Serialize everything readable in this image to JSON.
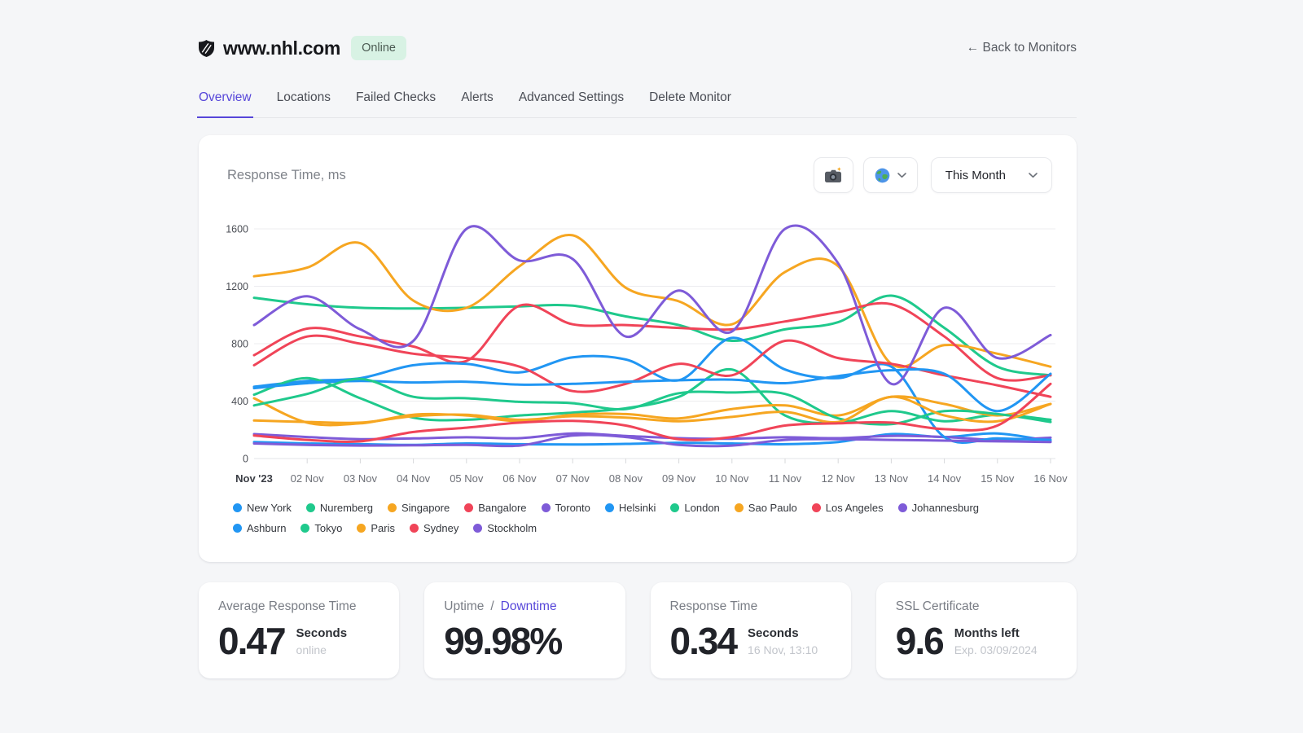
{
  "colors": {
    "accent": "#5646d9",
    "online_badge_bg": "#d8f2e4",
    "online_badge_text": "#4b5a52",
    "grid": "#ececef",
    "axis": "#e3e4e7"
  },
  "header": {
    "favicon": "nhl-shield-icon",
    "site": "www.nhl.com",
    "status": "Online",
    "back": "← Back to Monitors"
  },
  "tabs": [
    {
      "label": "Overview",
      "active": true
    },
    {
      "label": "Locations",
      "active": false
    },
    {
      "label": "Failed Checks",
      "active": false
    },
    {
      "label": "Alerts",
      "active": false
    },
    {
      "label": "Advanced Settings",
      "active": false
    },
    {
      "label": "Delete Monitor",
      "active": false
    }
  ],
  "chart_card": {
    "title": "Response Time, ms",
    "screenshot_icon": "camera-icon",
    "region_icon": "globe-icon",
    "period_label": "This Month"
  },
  "chart_data": {
    "type": "line",
    "title": "Response Time, ms",
    "unit": "ms",
    "grid": "horizontal",
    "legend_position": "bottom",
    "ylim": [
      0,
      1700
    ],
    "yticks": [
      0,
      400,
      800,
      1200,
      1600
    ],
    "x": [
      "Nov '23",
      "02 Nov",
      "03 Nov",
      "04 Nov",
      "05 Nov",
      "06 Nov",
      "07 Nov",
      "08 Nov",
      "09 Nov",
      "10 Nov",
      "11 Nov",
      "12 Nov",
      "13 Nov",
      "14 Nov",
      "15 Nov",
      "16 Nov"
    ],
    "series": [
      {
        "name": "New York",
        "color": "#2196f3",
        "values": [
          115,
          105,
          100,
          95,
          105,
          100,
          98,
          102,
          110,
          105,
          100,
          115,
          170,
          150,
          175,
          120
        ]
      },
      {
        "name": "Nuremberg",
        "color": "#1fc98c",
        "values": [
          1120,
          1075,
          1050,
          1045,
          1050,
          1060,
          1065,
          990,
          930,
          820,
          900,
          950,
          1135,
          910,
          640,
          580
        ]
      },
      {
        "name": "Singapore",
        "color": "#f6a621",
        "values": [
          1270,
          1330,
          1500,
          1100,
          1050,
          1340,
          1555,
          1190,
          1095,
          935,
          1300,
          1340,
          660,
          790,
          730,
          640
        ]
      },
      {
        "name": "Bangalore",
        "color": "#f04458",
        "values": [
          720,
          905,
          850,
          780,
          680,
          1065,
          935,
          930,
          910,
          900,
          955,
          1020,
          1075,
          850,
          560,
          580
        ]
      },
      {
        "name": "Toronto",
        "color": "#7e5bd8",
        "values": [
          170,
          150,
          135,
          140,
          148,
          142,
          175,
          158,
          142,
          138,
          148,
          142,
          158,
          150,
          130,
          145
        ]
      },
      {
        "name": "Helsinki",
        "color": "#2196f3",
        "values": [
          500,
          540,
          560,
          650,
          660,
          600,
          705,
          690,
          545,
          840,
          620,
          560,
          640,
          150,
          140,
          130
        ]
      },
      {
        "name": "London",
        "color": "#1fc98c",
        "values": [
          445,
          560,
          420,
          285,
          270,
          300,
          320,
          350,
          430,
          620,
          300,
          250,
          330,
          260,
          305,
          270
        ]
      },
      {
        "name": "Sao Paulo",
        "color": "#f6a621",
        "values": [
          420,
          250,
          245,
          305,
          300,
          260,
          305,
          310,
          280,
          345,
          370,
          300,
          430,
          380,
          300,
          380
        ]
      },
      {
        "name": "Los Angeles",
        "color": "#f04458",
        "values": [
          650,
          850,
          800,
          730,
          700,
          640,
          470,
          520,
          660,
          580,
          820,
          700,
          660,
          580,
          510,
          430
        ]
      },
      {
        "name": "Johannesburg",
        "color": "#7e5bd8",
        "values": [
          930,
          1130,
          900,
          820,
          1600,
          1380,
          1390,
          850,
          1170,
          885,
          1600,
          1360,
          520,
          1050,
          700,
          860
        ]
      },
      {
        "name": "Ashburn",
        "color": "#2196f3",
        "values": [
          490,
          525,
          540,
          530,
          535,
          515,
          520,
          535,
          545,
          550,
          525,
          575,
          615,
          590,
          330,
          590
        ]
      },
      {
        "name": "Tokyo",
        "color": "#1fc98c",
        "values": [
          370,
          450,
          555,
          430,
          420,
          395,
          385,
          345,
          455,
          460,
          450,
          280,
          240,
          330,
          310,
          255
        ]
      },
      {
        "name": "Paris",
        "color": "#f6a621",
        "values": [
          265,
          255,
          250,
          295,
          305,
          270,
          295,
          285,
          260,
          290,
          325,
          255,
          430,
          300,
          260,
          380
        ]
      },
      {
        "name": "Sydney",
        "color": "#f04458",
        "values": [
          160,
          130,
          120,
          185,
          215,
          250,
          262,
          230,
          135,
          150,
          230,
          245,
          250,
          205,
          230,
          520
        ]
      },
      {
        "name": "Stockholm",
        "color": "#7e5bd8",
        "values": [
          105,
          95,
          90,
          92,
          95,
          90,
          160,
          150,
          95,
          90,
          130,
          135,
          130,
          125,
          120,
          115
        ]
      }
    ]
  },
  "stats": [
    {
      "label_segments": [
        {
          "text": "Average Response Time",
          "accent": false
        }
      ],
      "value": "0.47",
      "unit": "Seconds",
      "sub": "online"
    },
    {
      "label_segments": [
        {
          "text": "Uptime",
          "accent": false
        },
        {
          "text": "/",
          "accent": false
        },
        {
          "text": "Downtime",
          "accent": true
        }
      ],
      "value": "99.98%",
      "unit": "",
      "sub": ""
    },
    {
      "label_segments": [
        {
          "text": "Response Time",
          "accent": false
        }
      ],
      "value": "0.34",
      "unit": "Seconds",
      "sub": "16 Nov, 13:10"
    },
    {
      "label_segments": [
        {
          "text": "SSL Certificate",
          "accent": false
        }
      ],
      "value": "9.6",
      "unit": "Months left",
      "sub": "Exp. 03/09/2024"
    }
  ]
}
